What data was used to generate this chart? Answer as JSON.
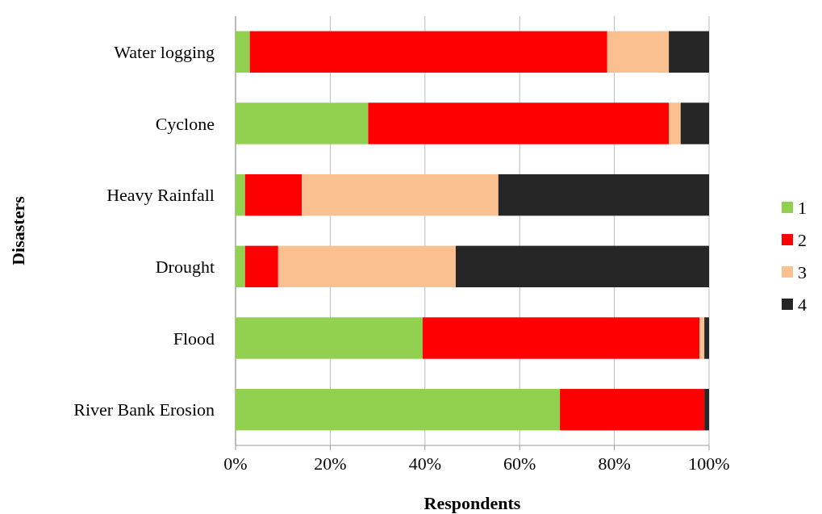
{
  "chart_data": {
    "type": "bar",
    "orientation": "horizontal",
    "stacked": true,
    "xlabel": "Respondents",
    "ylabel": "Disasters",
    "categories": [
      "Water logging",
      "Cyclone",
      "Heavy Rainfall",
      "Drought",
      "Flood",
      "River Bank Erosion"
    ],
    "series": [
      {
        "name": "1",
        "color": "#92d050",
        "values": [
          3,
          28,
          2,
          2,
          39.5,
          68.5
        ]
      },
      {
        "name": "2",
        "color": "#ff0000",
        "values": [
          75.5,
          63.5,
          12,
          7,
          58.5,
          30.5
        ]
      },
      {
        "name": "3",
        "color": "#fac090",
        "values": [
          13,
          2.5,
          41.5,
          37.5,
          1,
          0
        ]
      },
      {
        "name": "4",
        "color": "#262626",
        "values": [
          8.5,
          6,
          44.5,
          53.5,
          1,
          1
        ]
      }
    ],
    "xlim": [
      0,
      100
    ],
    "xticks": [
      {
        "value": 0,
        "label": "0%"
      },
      {
        "value": 20,
        "label": "20%"
      },
      {
        "value": 40,
        "label": "40%"
      },
      {
        "value": 60,
        "label": "60%"
      },
      {
        "value": 80,
        "label": "80%"
      },
      {
        "value": 100,
        "label": "100%"
      }
    ],
    "grid": "x",
    "legend": "right"
  }
}
